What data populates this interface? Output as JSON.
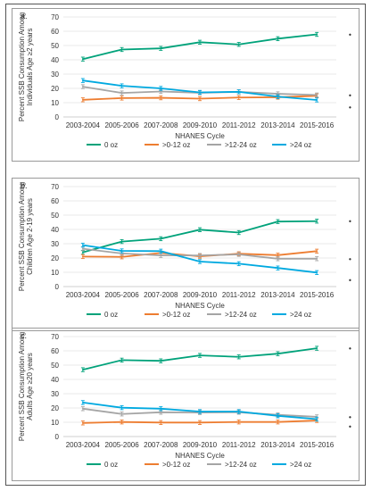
{
  "chart_data": [
    {
      "type": "line",
      "panel_label": "a.",
      "ylabel": "Percent SSB Consumption Among Individuals Age ≥2 years",
      "xlabel": "NHANES Cycle",
      "categories": [
        "2003-2004",
        "2005-2006",
        "2007-2008",
        "2009-2010",
        "2011-2012",
        "2013-2014",
        "2015-2016"
      ],
      "ylim": [
        0,
        70
      ],
      "yticks": [
        0,
        10,
        20,
        30,
        40,
        50,
        60,
        70
      ],
      "grid": "horizontal",
      "legend_position": "bottom",
      "significance_markers": [
        "•",
        "•",
        "•"
      ],
      "series": [
        {
          "name": "0 oz",
          "color": "#00a27a",
          "values": [
            40.5,
            47.2,
            48.0,
            52.3,
            50.8,
            54.8,
            57.8
          ]
        },
        {
          "name": ">0-12 oz",
          "color": "#ed7d31",
          "values": [
            12.0,
            13.2,
            13.4,
            12.8,
            13.6,
            13.8,
            14.8
          ]
        },
        {
          "name": ">12-24 oz",
          "color": "#a5a5a5",
          "values": [
            21.2,
            16.8,
            17.8,
            16.9,
            17.6,
            16.2,
            15.4
          ]
        },
        {
          "name": ">24 oz",
          "color": "#00a9e0",
          "values": [
            25.5,
            21.8,
            20.0,
            17.2,
            17.6,
            14.2,
            11.9
          ]
        }
      ]
    },
    {
      "type": "line",
      "panel_label": "b.",
      "ylabel": "Percent SSB Consumption Among Children Age 2-19 years",
      "xlabel": "NHANES Cycle",
      "categories": [
        "2003-2004",
        "2005-2006",
        "2007-2008",
        "2009-2010",
        "2011-2012",
        "2013-2014",
        "2015-2016"
      ],
      "ylim": [
        0,
        70
      ],
      "yticks": [
        0,
        10,
        20,
        30,
        40,
        50,
        60,
        70
      ],
      "grid": "horizontal",
      "legend_position": "bottom",
      "significance_markers": [
        "•",
        "•",
        "•"
      ],
      "series": [
        {
          "name": "0 oz",
          "color": "#00a27a",
          "values": [
            24.0,
            31.5,
            33.5,
            39.8,
            37.8,
            45.5,
            45.8
          ]
        },
        {
          "name": ">0-12 oz",
          "color": "#ed7d31",
          "values": [
            21.0,
            20.8,
            23.5,
            21.2,
            23.0,
            22.0,
            24.8
          ]
        },
        {
          "name": ">12-24 oz",
          "color": "#a5a5a5",
          "values": [
            26.5,
            23.2,
            21.8,
            21.8,
            22.5,
            19.5,
            19.5
          ]
        },
        {
          "name": ">24 oz",
          "color": "#00a9e0",
          "values": [
            29.0,
            25.0,
            24.8,
            17.5,
            16.0,
            13.0,
            9.8
          ]
        }
      ]
    },
    {
      "type": "line",
      "panel_label": "c.",
      "ylabel": "Percent SSB Consumption Among Adults Age ≥20 years",
      "xlabel": "NHANES Cycle",
      "categories": [
        "2003-2004",
        "2005-2006",
        "2007-2008",
        "2009-2010",
        "2011-2012",
        "2013-2014",
        "2015-2016"
      ],
      "ylim": [
        0,
        70
      ],
      "yticks": [
        0,
        10,
        20,
        30,
        40,
        50,
        60,
        70
      ],
      "grid": "horizontal",
      "legend_position": "bottom",
      "significance_markers": [
        "•",
        "•",
        "•"
      ],
      "series": [
        {
          "name": "0 oz",
          "color": "#00a27a",
          "values": [
            46.8,
            53.5,
            53.0,
            56.8,
            55.8,
            58.0,
            61.8
          ]
        },
        {
          "name": ">0-12 oz",
          "color": "#ed7d31",
          "values": [
            9.5,
            10.2,
            9.8,
            9.8,
            10.2,
            10.2,
            11.2
          ]
        },
        {
          "name": ">12-24 oz",
          "color": "#a5a5a5",
          "values": [
            19.5,
            15.8,
            17.0,
            16.8,
            17.0,
            15.2,
            13.8
          ]
        },
        {
          "name": ">24 oz",
          "color": "#00a9e0",
          "values": [
            23.8,
            20.2,
            19.5,
            17.5,
            17.5,
            14.5,
            12.2
          ]
        }
      ]
    }
  ]
}
